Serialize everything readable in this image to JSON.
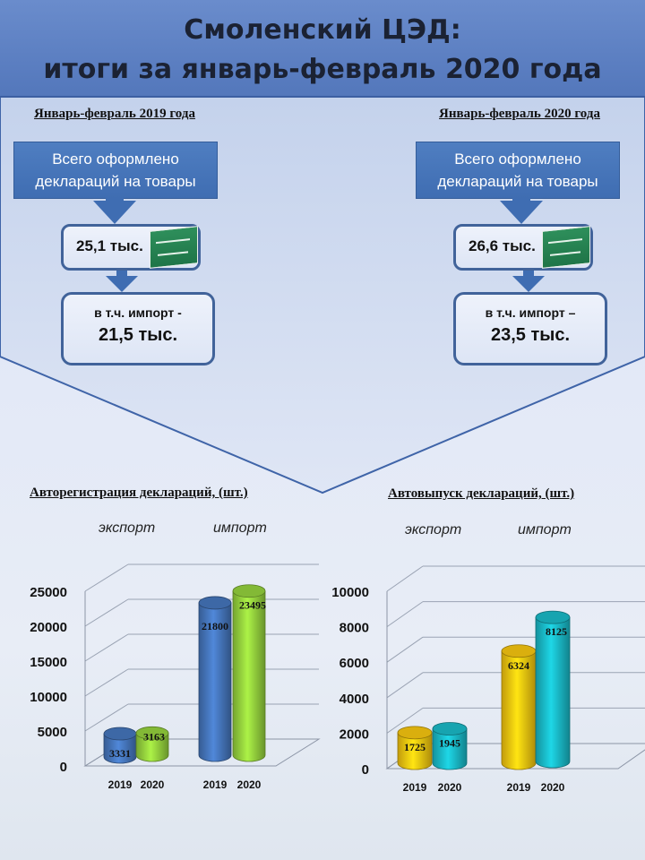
{
  "title_line1": "Смоленский ЦЭД:",
  "title_line2": "итоги за январь-февраль 2020 года",
  "colors": {
    "banner": "#5b7fc2",
    "box_blue": "#3f6db2",
    "bar_2019_left": "#4473b8",
    "bar_2020_left": "#92cd3c",
    "bar_2019_right": "#f2c20f",
    "bar_2020_right": "#19b6c4"
  },
  "left_panel": {
    "period": "Январь-февраль 2019 года",
    "box_text": "Всего оформлено деклараций на товары",
    "total": "25,1 тыс.",
    "import_label": "в т.ч. импорт -",
    "import_value": "21,5 тыс."
  },
  "right_panel": {
    "period": "Январь-февраль 2020 года",
    "box_text": "Всего оформлено деклараций на товары",
    "total": "26,6 тыс.",
    "import_label": "в т.ч. импорт –",
    "import_value": "23,5 тыс."
  },
  "chart_data": [
    {
      "type": "bar",
      "title": "Авторегистрация деклараций, (шт.)",
      "groups": [
        "экспорт",
        "импорт"
      ],
      "categories": [
        "2019",
        "2020",
        "2019",
        "2020"
      ],
      "values": [
        3331,
        3163,
        21800,
        23495
      ],
      "ylim": [
        0,
        25000
      ],
      "yticks": [
        0,
        5000,
        10000,
        15000,
        20000,
        25000
      ],
      "grid": true
    },
    {
      "type": "bar",
      "title": "Автовыпуск деклараций, (шт.)",
      "groups": [
        "экспорт",
        "импорт"
      ],
      "categories": [
        "2019",
        "2020",
        "2019",
        "2020"
      ],
      "values": [
        1725,
        1945,
        6324,
        8125
      ],
      "ylim": [
        0,
        10000
      ],
      "yticks": [
        0,
        2000,
        4000,
        6000,
        8000,
        10000
      ],
      "grid": true
    }
  ]
}
